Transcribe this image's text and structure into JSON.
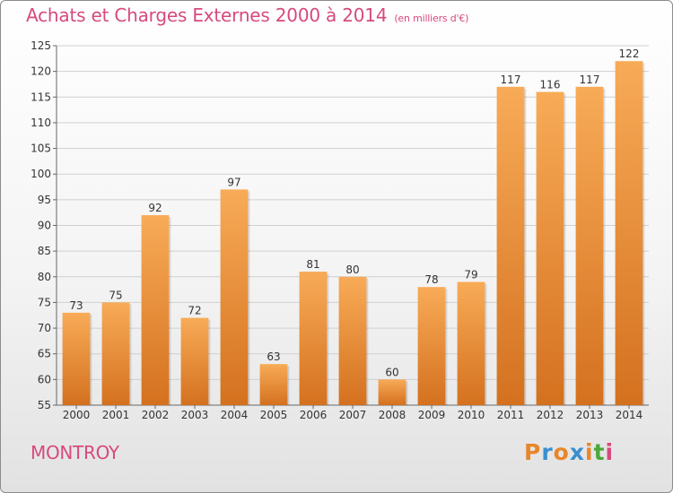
{
  "header": {
    "title": "Achats et Charges Externes 2000 à 2014",
    "unit": "(en milliers d'€)"
  },
  "footer": {
    "commune": "MONTROY",
    "logo_text": "Proxiti"
  },
  "colors": {
    "title": "#d64a7e",
    "bar_light": "#f8ab57",
    "bar_dark": "#d4711f",
    "grid": "#d0d0d0",
    "logo_letters": [
      "#e8862a",
      "#3a8fd0",
      "#e8862a",
      "#3a8fd0",
      "#e8862a",
      "#4aa83a",
      "#d64a7e"
    ]
  },
  "chart_data": {
    "type": "bar",
    "title": "Achats et Charges Externes 2000 à 2014",
    "subtitle": "(en milliers d'€)",
    "xlabel": "",
    "ylabel": "",
    "categories": [
      "2000",
      "2001",
      "2002",
      "2003",
      "2004",
      "2005",
      "2006",
      "2007",
      "2008",
      "2009",
      "2010",
      "2011",
      "2012",
      "2013",
      "2014"
    ],
    "values": [
      73,
      75,
      92,
      72,
      97,
      63,
      81,
      80,
      60,
      78,
      79,
      117,
      116,
      117,
      122
    ],
    "data_labels": [
      "73",
      "75",
      "92",
      "72",
      "97",
      "63",
      "81",
      "80",
      "60",
      "78",
      "79",
      "117",
      "116",
      "117",
      "122"
    ],
    "ylim": [
      55,
      125
    ],
    "yticks": [
      55,
      60,
      65,
      70,
      75,
      80,
      85,
      90,
      95,
      100,
      105,
      110,
      115,
      120,
      125
    ],
    "grid": true,
    "legend": "none"
  }
}
